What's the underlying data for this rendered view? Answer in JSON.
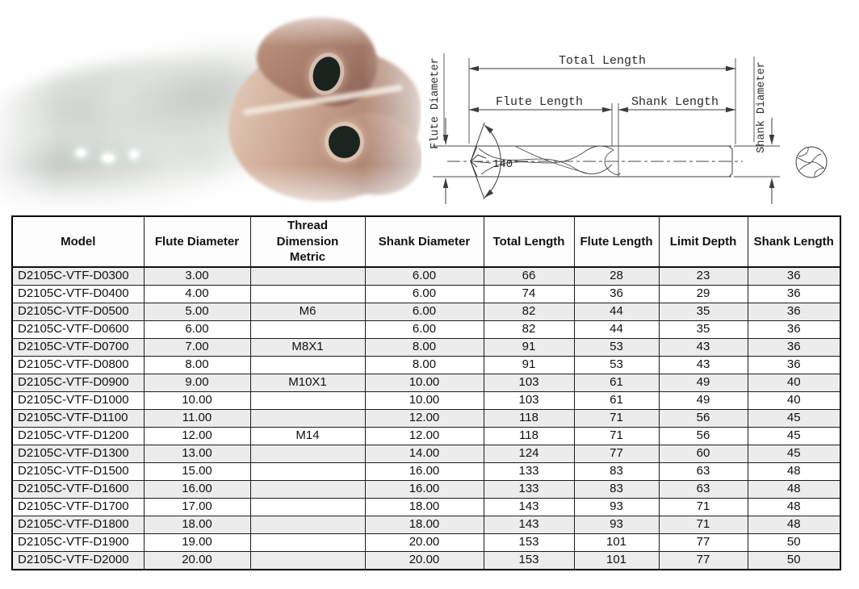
{
  "photo": {
    "description": "close-up photo of bronze-coated carbide drill tip with two dark coolant holes and blurred grey flutes",
    "colors": {
      "coating_bronze": "#b68d7a",
      "coating_light": "#e8d0c0",
      "coating_dark": "#8a6255",
      "coolant_hole": "#18231e",
      "flute_grey": "#c9cdc9"
    }
  },
  "diagram": {
    "labels": {
      "total_length": "Total Length",
      "flute_length": "Flute Length",
      "shank_length": "Shank Length",
      "flute_diameter": "Flute Diameter",
      "shank_diameter": "Shank Diameter",
      "point_angle": "140°"
    },
    "line_color": "#3c3c3c"
  },
  "table": {
    "headers": [
      "Model",
      "Flute Diameter",
      "Thread Dimension Metric",
      "Shank Diameter",
      "Total Length",
      "Flute Length",
      "Limit Depth",
      "Shank Length"
    ],
    "rows": [
      [
        "D2105C-VTF-D0300",
        "3.00",
        "",
        "6.00",
        "66",
        "28",
        "23",
        "36"
      ],
      [
        "D2105C-VTF-D0400",
        "4.00",
        "",
        "6.00",
        "74",
        "36",
        "29",
        "36"
      ],
      [
        "D2105C-VTF-D0500",
        "5.00",
        "M6",
        "6.00",
        "82",
        "44",
        "35",
        "36"
      ],
      [
        "D2105C-VTF-D0600",
        "6.00",
        "",
        "6.00",
        "82",
        "44",
        "35",
        "36"
      ],
      [
        "D2105C-VTF-D0700",
        "7.00",
        "M8X1",
        "8.00",
        "91",
        "53",
        "43",
        "36"
      ],
      [
        "D2105C-VTF-D0800",
        "8.00",
        "",
        "8.00",
        "91",
        "53",
        "43",
        "36"
      ],
      [
        "D2105C-VTF-D0900",
        "9.00",
        "M10X1",
        "10.00",
        "103",
        "61",
        "49",
        "40"
      ],
      [
        "D2105C-VTF-D1000",
        "10.00",
        "",
        "10.00",
        "103",
        "61",
        "49",
        "40"
      ],
      [
        "D2105C-VTF-D1100",
        "11.00",
        "",
        "12.00",
        "118",
        "71",
        "56",
        "45"
      ],
      [
        "D2105C-VTF-D1200",
        "12.00",
        "M14",
        "12.00",
        "118",
        "71",
        "56",
        "45"
      ],
      [
        "D2105C-VTF-D1300",
        "13.00",
        "",
        "14.00",
        "124",
        "77",
        "60",
        "45"
      ],
      [
        "D2105C-VTF-D1500",
        "15.00",
        "",
        "16.00",
        "133",
        "83",
        "63",
        "48"
      ],
      [
        "D2105C-VTF-D1600",
        "16.00",
        "",
        "16.00",
        "133",
        "83",
        "63",
        "48"
      ],
      [
        "D2105C-VTF-D1700",
        "17.00",
        "",
        "18.00",
        "143",
        "93",
        "71",
        "48"
      ],
      [
        "D2105C-VTF-D1800",
        "18.00",
        "",
        "18.00",
        "143",
        "93",
        "71",
        "48"
      ],
      [
        "D2105C-VTF-D1900",
        "19.00",
        "",
        "20.00",
        "153",
        "101",
        "77",
        "50"
      ],
      [
        "D2105C-VTF-D2000",
        "20.00",
        "",
        "20.00",
        "153",
        "101",
        "77",
        "50"
      ]
    ],
    "colors": {
      "stripe": "#ececec",
      "border": "#1c1c1c",
      "text": "#111111"
    }
  }
}
